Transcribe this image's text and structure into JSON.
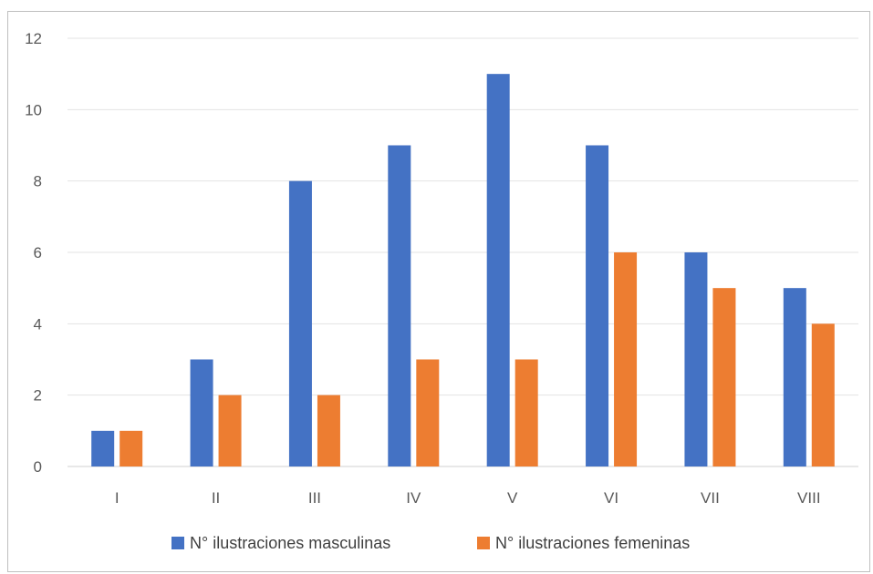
{
  "chart_data": {
    "type": "bar",
    "categories": [
      "I",
      "II",
      "III",
      "IV",
      "V",
      "VI",
      "VII",
      "VIII"
    ],
    "series": [
      {
        "name": "N° ilustraciones masculinas",
        "values": [
          1,
          3,
          8,
          9,
          11,
          9,
          6,
          5
        ],
        "color": "#4472C4"
      },
      {
        "name": "N° ilustraciones femeninas",
        "values": [
          1,
          2,
          2,
          3,
          3,
          6,
          5,
          4
        ],
        "color": "#ED7D31"
      }
    ],
    "y_ticks": [
      0,
      2,
      4,
      6,
      8,
      10,
      12
    ],
    "ylim": [
      0,
      12
    ],
    "grid": true,
    "legend_position": "bottom"
  }
}
